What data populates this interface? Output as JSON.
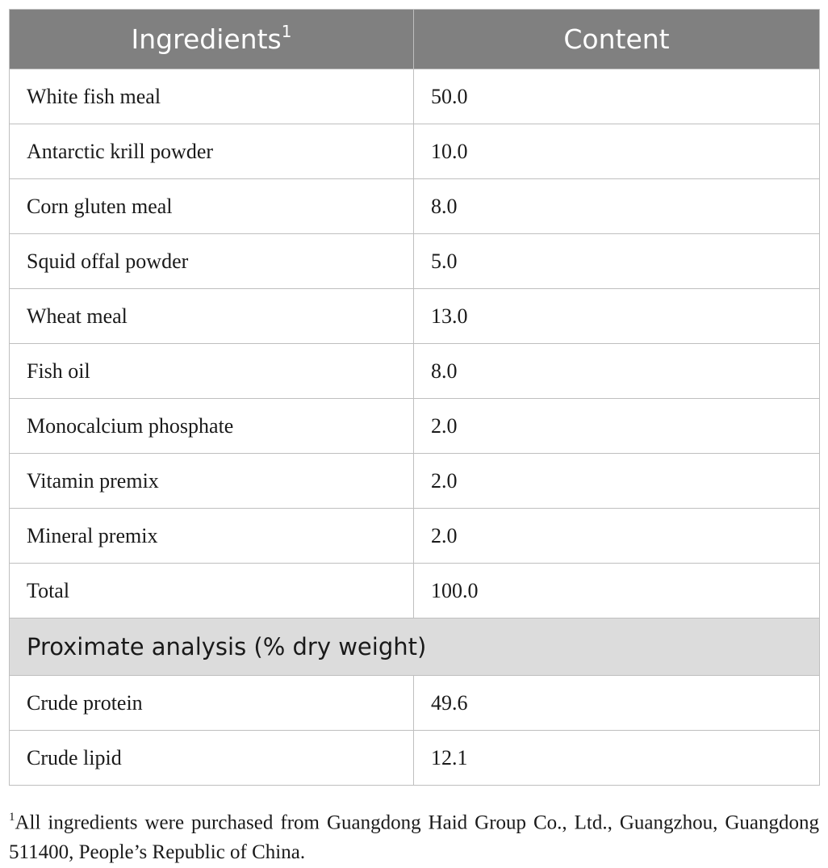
{
  "table": {
    "header": {
      "col1": "Ingredients",
      "col1_sup": "1",
      "col2": "Content"
    },
    "ingredient_rows": [
      {
        "name": "White fish meal",
        "value": "50.0"
      },
      {
        "name": "Antarctic krill powder",
        "value": "10.0"
      },
      {
        "name": "Corn gluten meal",
        "value": "8.0"
      },
      {
        "name": "Squid offal powder",
        "value": "5.0"
      },
      {
        "name": "Wheat meal",
        "value": "13.0"
      },
      {
        "name": "Fish oil",
        "value": "8.0"
      },
      {
        "name": "Monocalcium phosphate",
        "value": "2.0"
      },
      {
        "name": "Vitamin premix",
        "value": "2.0"
      },
      {
        "name": "Mineral premix",
        "value": "2.0"
      },
      {
        "name": "Total",
        "value": "100.0"
      }
    ],
    "section_title": "Proximate analysis (% dry weight)",
    "analysis_rows": [
      {
        "name": "Crude protein",
        "value": "49.6"
      },
      {
        "name": "Crude lipid",
        "value": "12.1"
      }
    ]
  },
  "footnote": {
    "marker": "1",
    "text": "All ingredients were purchased from Guangdong Haid Group Co., Ltd., Guangzhou, Guangdong 511400, People’s Republic of China."
  },
  "colors": {
    "header_bg": "#808080",
    "section_bg": "#dcdcdc",
    "border": "#bfbfbf"
  }
}
